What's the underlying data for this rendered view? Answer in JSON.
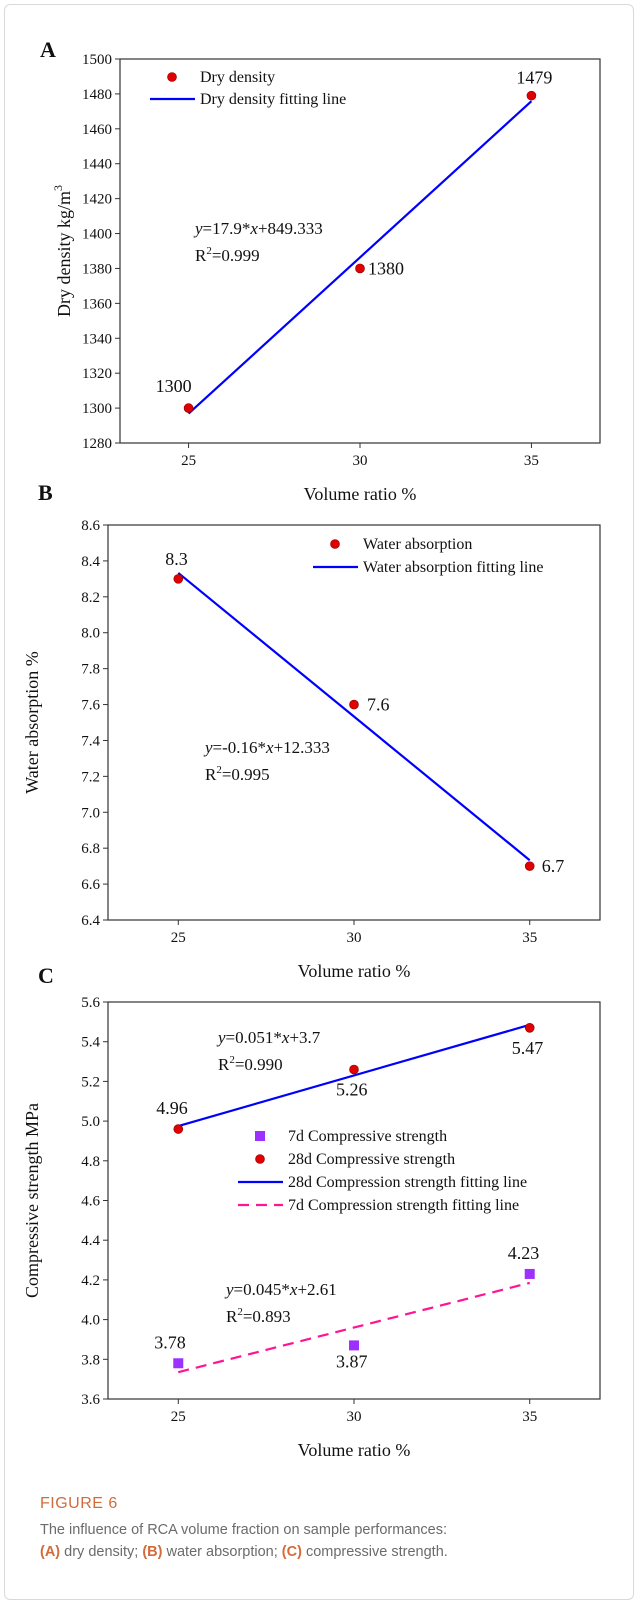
{
  "figure": {
    "caption_title": "FIGURE 6",
    "caption_text_1": "The influence of RCA volume fraction on sample performances:",
    "caption_label_a": "(A)",
    "caption_text_2": " dry density; ",
    "caption_label_b": "(B)",
    "caption_text_3": " water absorption; ",
    "caption_label_c": "(C)",
    "caption_text_4": " compressive strength."
  },
  "colors": {
    "fit_line": "#0000ff",
    "fit_line_dashed": "#ff1493",
    "point_red": "#e00000",
    "point_purple": "#9b30ff",
    "axis": "#333333"
  },
  "chart_data": [
    {
      "panel": "A",
      "type": "scatter",
      "xlabel": "Volume ratio %",
      "ylabel": "Dry density kg/m",
      "ylabel_sup": "3",
      "xlim": [
        23,
        37
      ],
      "ylim": [
        1280,
        1500
      ],
      "xticks": [
        25,
        30,
        35
      ],
      "yticks": [
        1280,
        1300,
        1320,
        1340,
        1360,
        1380,
        1400,
        1420,
        1440,
        1460,
        1480,
        1500
      ],
      "legend_position": "top-left",
      "series": [
        {
          "name": "Dry density",
          "marker": "circle",
          "color": "#e00000",
          "x": [
            25,
            30,
            35
          ],
          "y": [
            1300,
            1380,
            1479
          ],
          "labels": [
            "1300",
            "1380",
            "1479"
          ]
        },
        {
          "name": "Dry density fitting line",
          "line": "solid",
          "color": "#0000ff",
          "x": [
            25,
            35
          ],
          "y": [
            1296.83,
            1475.83
          ]
        }
      ],
      "equation": "y=17.9*x+849.333",
      "r2": "R2=0.999"
    },
    {
      "panel": "B",
      "type": "scatter",
      "xlabel": "Volume ratio %",
      "ylabel": "Water absorption %",
      "xlim": [
        23,
        37
      ],
      "ylim": [
        6.4,
        8.6
      ],
      "xticks": [
        25,
        30,
        35
      ],
      "yticks": [
        6.4,
        6.6,
        6.8,
        7.0,
        7.2,
        7.4,
        7.6,
        7.8,
        8.0,
        8.2,
        8.4,
        8.6
      ],
      "legend_position": "top-right",
      "series": [
        {
          "name": "Water absorption",
          "marker": "circle",
          "color": "#e00000",
          "x": [
            25,
            30,
            35
          ],
          "y": [
            8.3,
            7.6,
            6.7
          ],
          "labels": [
            "8.3",
            "7.6",
            "6.7"
          ]
        },
        {
          "name": "Water absorption fitting line",
          "line": "solid",
          "color": "#0000ff",
          "x": [
            25,
            35
          ],
          "y": [
            8.333,
            6.733
          ]
        }
      ],
      "equation": "y=-0.16*x+12.333",
      "r2": "R2=0.995"
    },
    {
      "panel": "C",
      "type": "scatter",
      "xlabel": "Volume ratio %",
      "ylabel": "Compressive strength MPa",
      "xlim": [
        23,
        37
      ],
      "ylim": [
        3.6,
        5.6
      ],
      "xticks": [
        25,
        30,
        35
      ],
      "yticks": [
        3.6,
        3.8,
        4.0,
        4.2,
        4.4,
        4.6,
        4.8,
        5.0,
        5.2,
        5.4,
        5.6
      ],
      "legend_position": "center-right",
      "series": [
        {
          "name": "7d Compressive strength",
          "marker": "square",
          "color": "#9b30ff",
          "x": [
            25,
            30,
            35
          ],
          "y": [
            3.78,
            3.87,
            4.23
          ],
          "labels": [
            "3.78",
            "3.87",
            "4.23"
          ]
        },
        {
          "name": "28d Compressive strength",
          "marker": "circle",
          "color": "#e00000",
          "x": [
            25,
            30,
            35
          ],
          "y": [
            4.96,
            5.26,
            5.47
          ],
          "labels": [
            "4.96",
            "5.26",
            "5.47"
          ]
        },
        {
          "name": "28d Compression strength fitting line",
          "line": "solid",
          "color": "#0000ff",
          "x": [
            25,
            35
          ],
          "y": [
            4.975,
            5.485
          ]
        },
        {
          "name": "7d Compression strength fitting line",
          "line": "dashed",
          "color": "#ff1493",
          "x": [
            25,
            35
          ],
          "y": [
            3.735,
            4.185
          ]
        }
      ],
      "equation_28d": "y=0.051*x+3.7",
      "r2_28d": "R2=0.990",
      "equation_7d": "y=0.045*x+2.61",
      "r2_7d": "R2=0.893"
    }
  ]
}
